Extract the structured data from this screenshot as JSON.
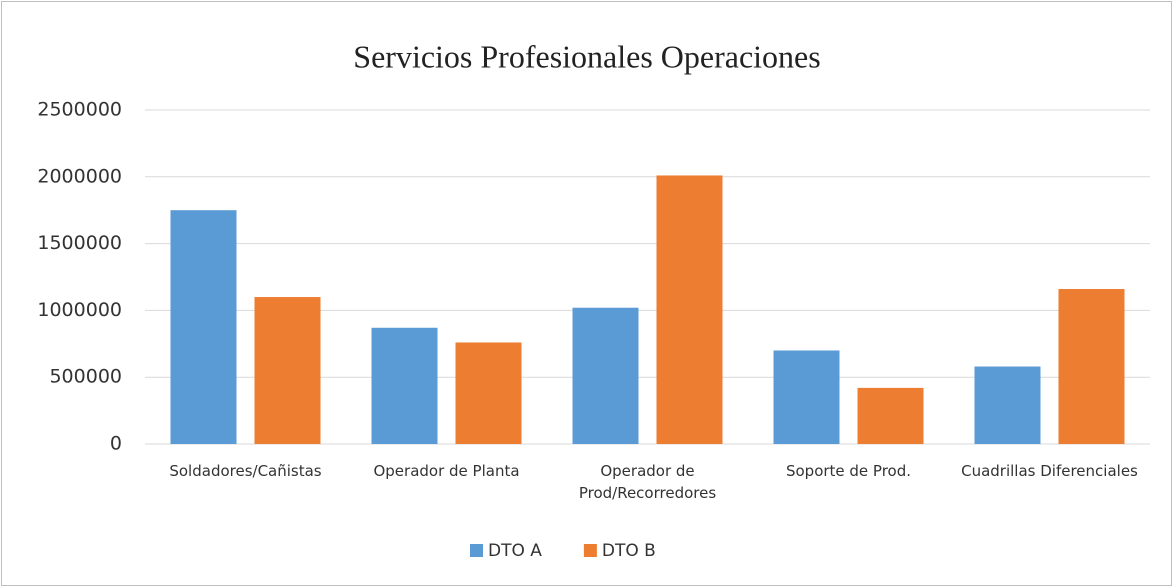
{
  "chart_data": {
    "type": "bar",
    "title": "Servicios Profesionales Operaciones",
    "categories": [
      "Soldadores/Cañistas",
      "Operador de Planta",
      "Operador de\nProd/Recorredores",
      "Soporte de Prod.",
      "Cuadrillas Diferenciales"
    ],
    "series": [
      {
        "name": "DTO A",
        "color": "#5b9bd5",
        "values": [
          1750000,
          870000,
          1020000,
          700000,
          580000
        ]
      },
      {
        "name": "DTO B",
        "color": "#ed7d31",
        "values": [
          1100000,
          760000,
          2010000,
          420000,
          1160000
        ]
      }
    ],
    "ylim": [
      0,
      2500000
    ],
    "yticks": [
      0,
      500000,
      1000000,
      1500000,
      2000000,
      2500000
    ],
    "grid": true,
    "legend": "bottom"
  }
}
